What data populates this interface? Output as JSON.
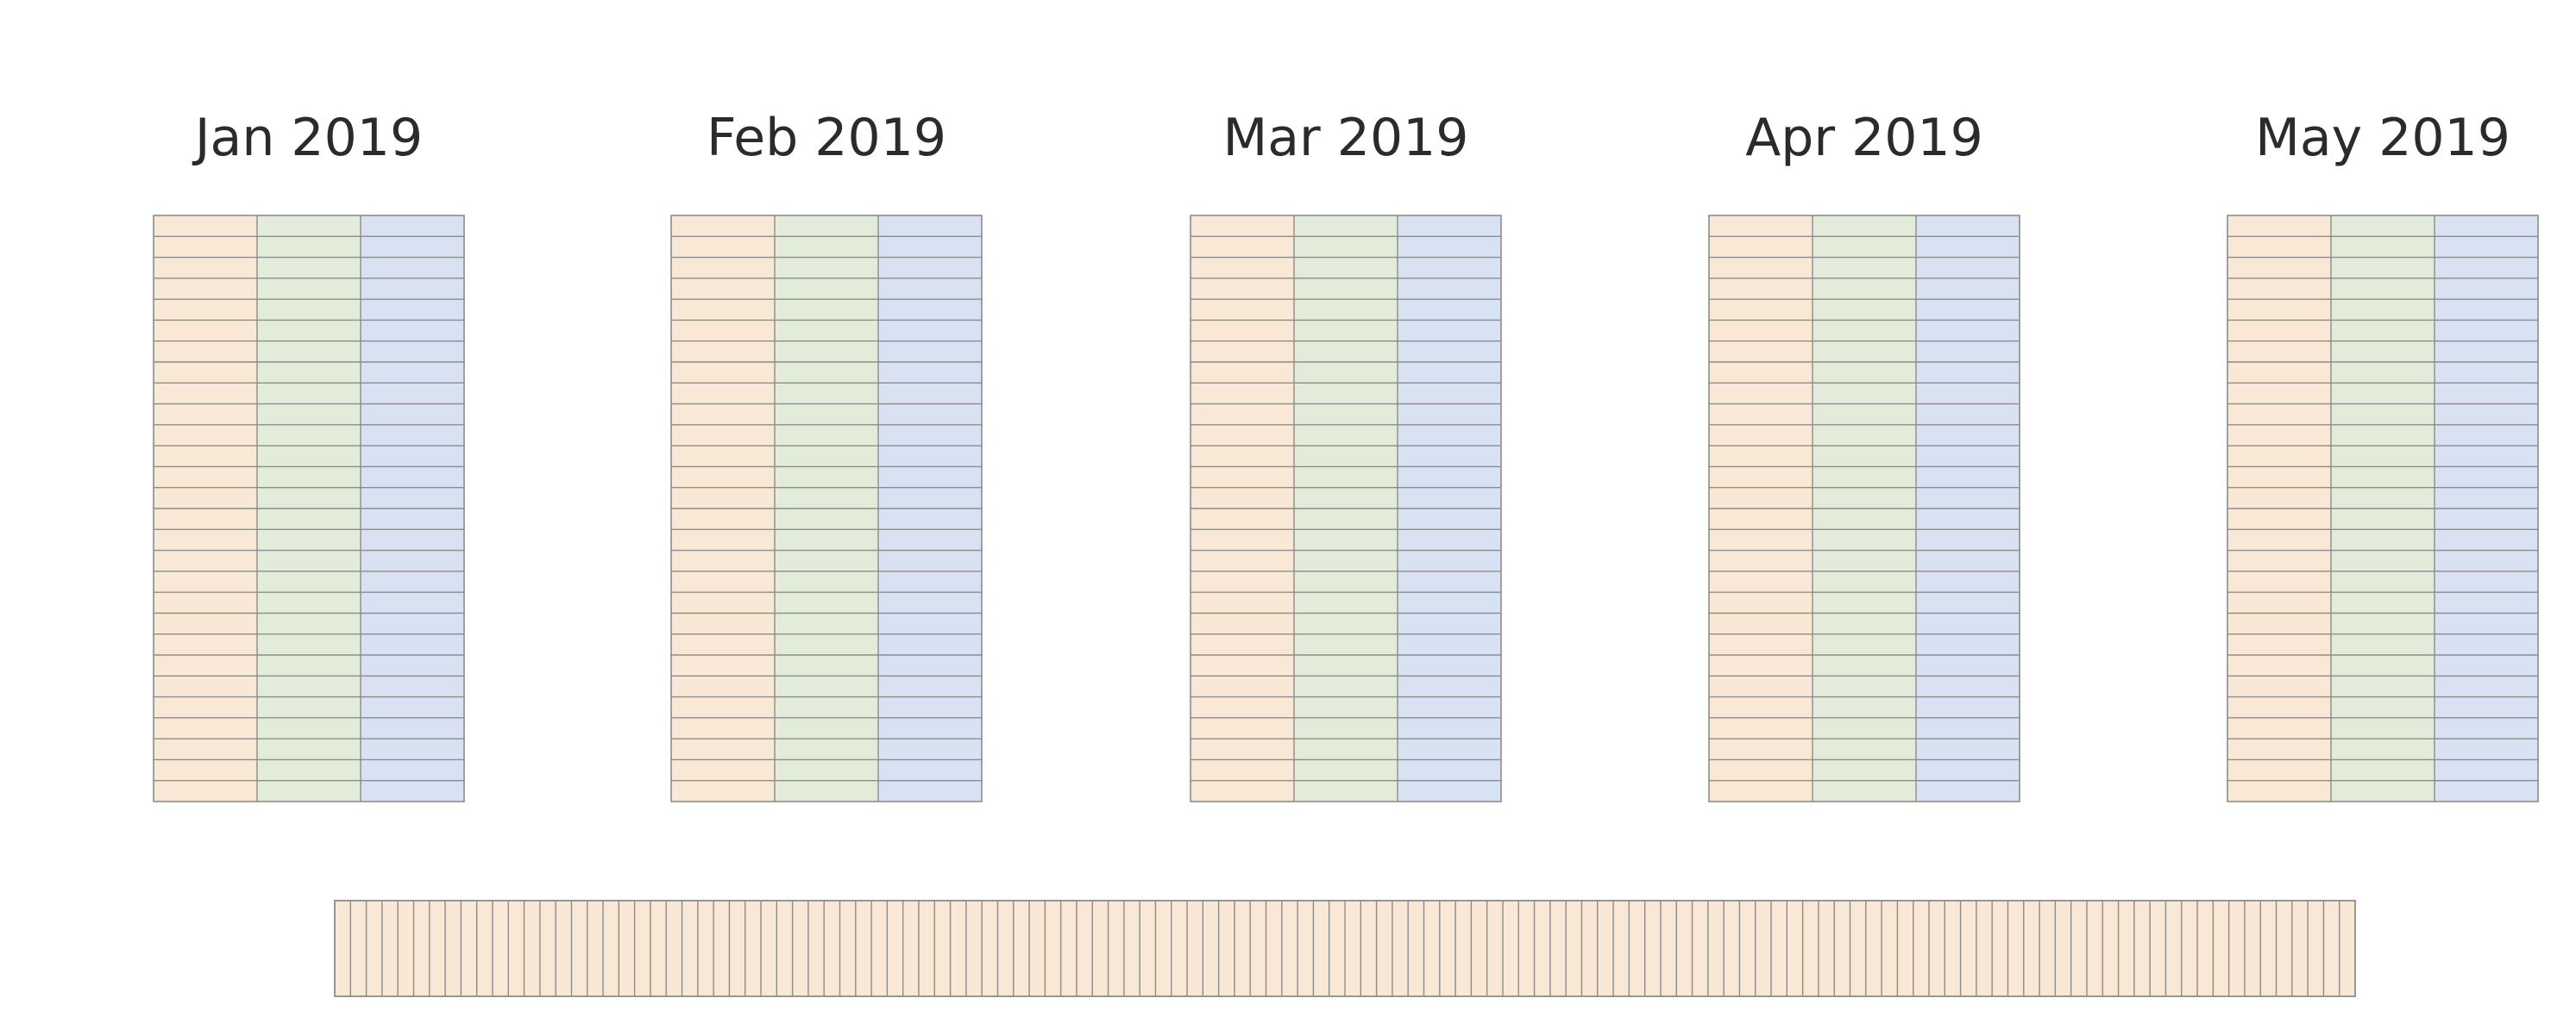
{
  "months": [
    {
      "label": "Jan 2019"
    },
    {
      "label": "Feb 2019"
    },
    {
      "label": "Mar 2019"
    },
    {
      "label": "Apr 2019"
    },
    {
      "label": "May 2019"
    }
  ],
  "month_table": {
    "column_count": 3,
    "row_count": 28,
    "column_colors": [
      "#f8e8d5",
      "#e2ecd8",
      "#d8e2f2"
    ]
  },
  "combined_table": {
    "column_count": 128,
    "fill_color": "#f8e8d5"
  },
  "colors": {
    "grid_line": "#8c8c8c",
    "background": "#ffffff"
  }
}
